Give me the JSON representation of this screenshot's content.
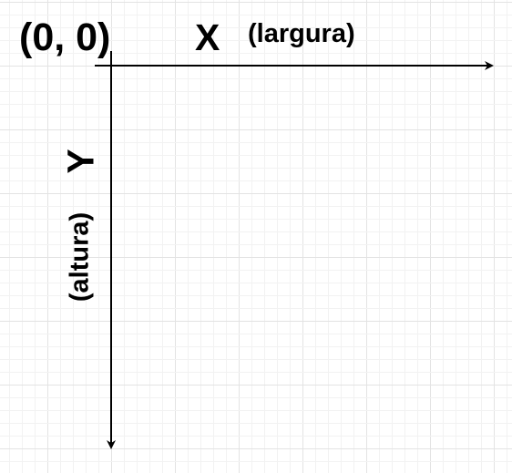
{
  "labels": {
    "origin": "(0, 0)",
    "x_axis_letter": "X",
    "x_axis_unit": "(largura)",
    "y_axis_letter": "Y",
    "y_axis_unit": "(altura)"
  },
  "colors": {
    "background": "#ffffff",
    "grid_minor": "#f2f2f2",
    "grid_major": "#e3e3e3",
    "axis": "#000000"
  },
  "grid": true
}
